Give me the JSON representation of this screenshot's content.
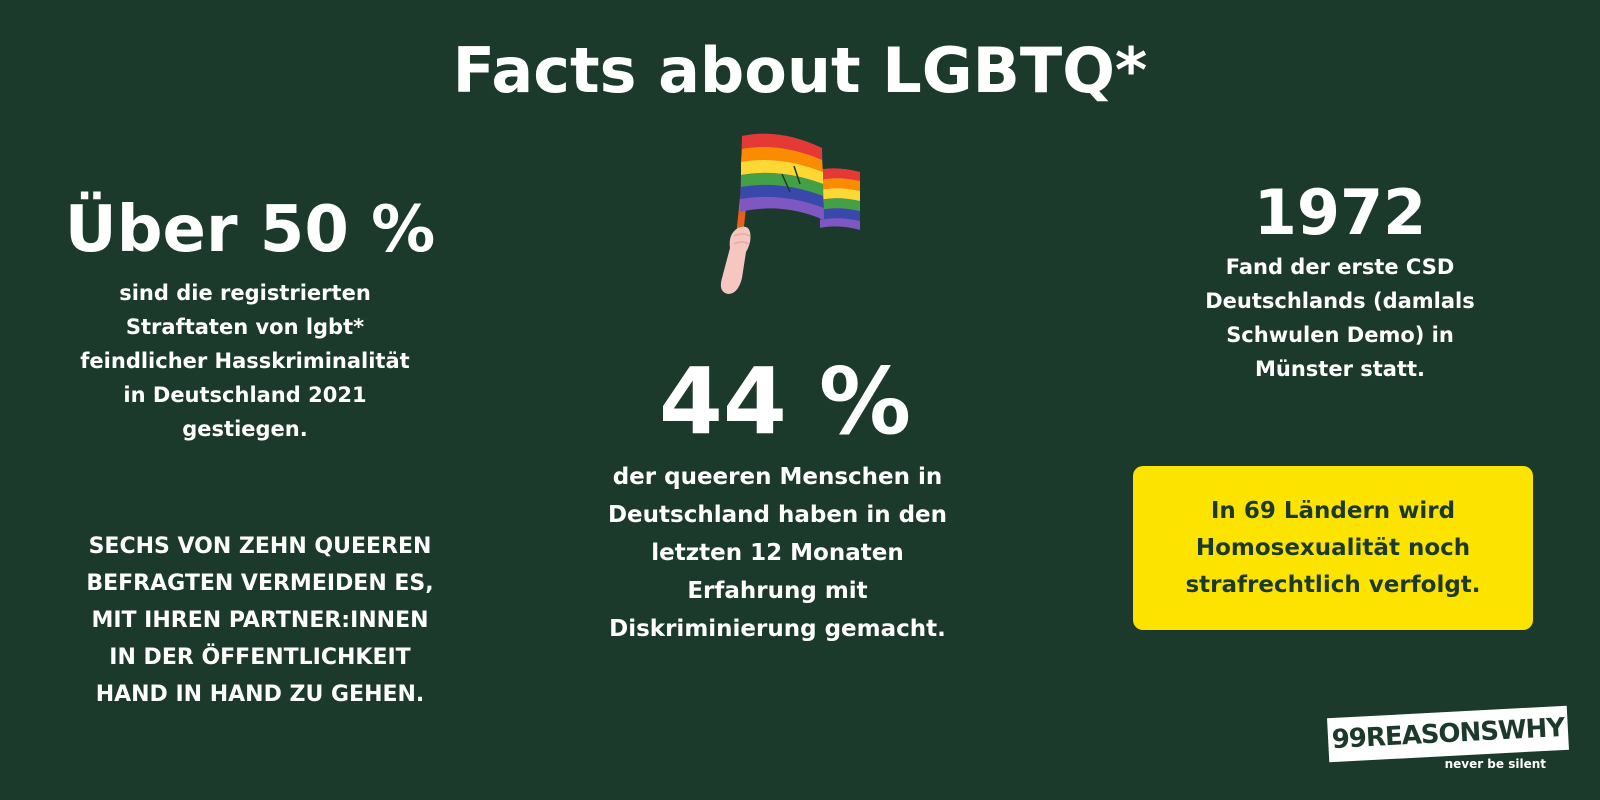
{
  "title": "Facts about LGBTQ*",
  "left": {
    "stat": "Über 50 %",
    "description_lines": [
      "sind die registrierten",
      "Straftaten von lgbt*",
      "feindlicher  Hasskriminalität",
      "in Deutschland 2021",
      "gestiegen."
    ],
    "caps_lines": [
      "SECHS VON ZEHN QUEEREN",
      "BEFRAGTEN VERMEIDEN ES,",
      "MIT IHREN PARTNER:INNEN",
      "IN DER ÖFFENTLICHKEIT",
      "HAND IN HAND ZU GEHEN."
    ]
  },
  "center": {
    "icon": "rainbow-flag-icon",
    "stat": "44 %",
    "description_lines": [
      "der queeren Menschen in",
      "Deutschland haben in den",
      "letzten  12 Monaten",
      "Erfahrung mit",
      "Diskriminierung gemacht."
    ]
  },
  "right": {
    "stat": "1972",
    "description_lines": [
      "Fand der erste CSD",
      "Deutschlands (damlals",
      "Schwulen Demo) in",
      "Münster statt."
    ],
    "highlight_lines": [
      "In 69 Ländern wird",
      "Homosexualität noch",
      "strafrechtlich verfolgt."
    ]
  },
  "logo": {
    "text": "99REASONSWHY",
    "tagline": "never be silent"
  },
  "colors": {
    "background": "#1c3a2b",
    "text": "#ffffff",
    "highlight_box": "#fde400",
    "highlight_text": "#1c3a2b"
  }
}
